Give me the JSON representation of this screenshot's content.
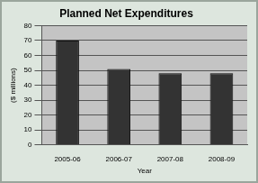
{
  "chart_data": {
    "type": "bar",
    "title": "Planned Net Expenditures",
    "x_label": "Year",
    "y_label": "($ millions)",
    "categories": [
      "2005-06",
      "2006-07",
      "2007-08",
      "2008-09"
    ],
    "values": [
      70,
      51,
      48,
      48
    ],
    "color": "#333333",
    "ylim": [
      0,
      80
    ],
    "yticks": [
      0,
      10,
      20,
      30,
      40,
      50,
      60,
      70,
      80
    ],
    "grid": true
  }
}
